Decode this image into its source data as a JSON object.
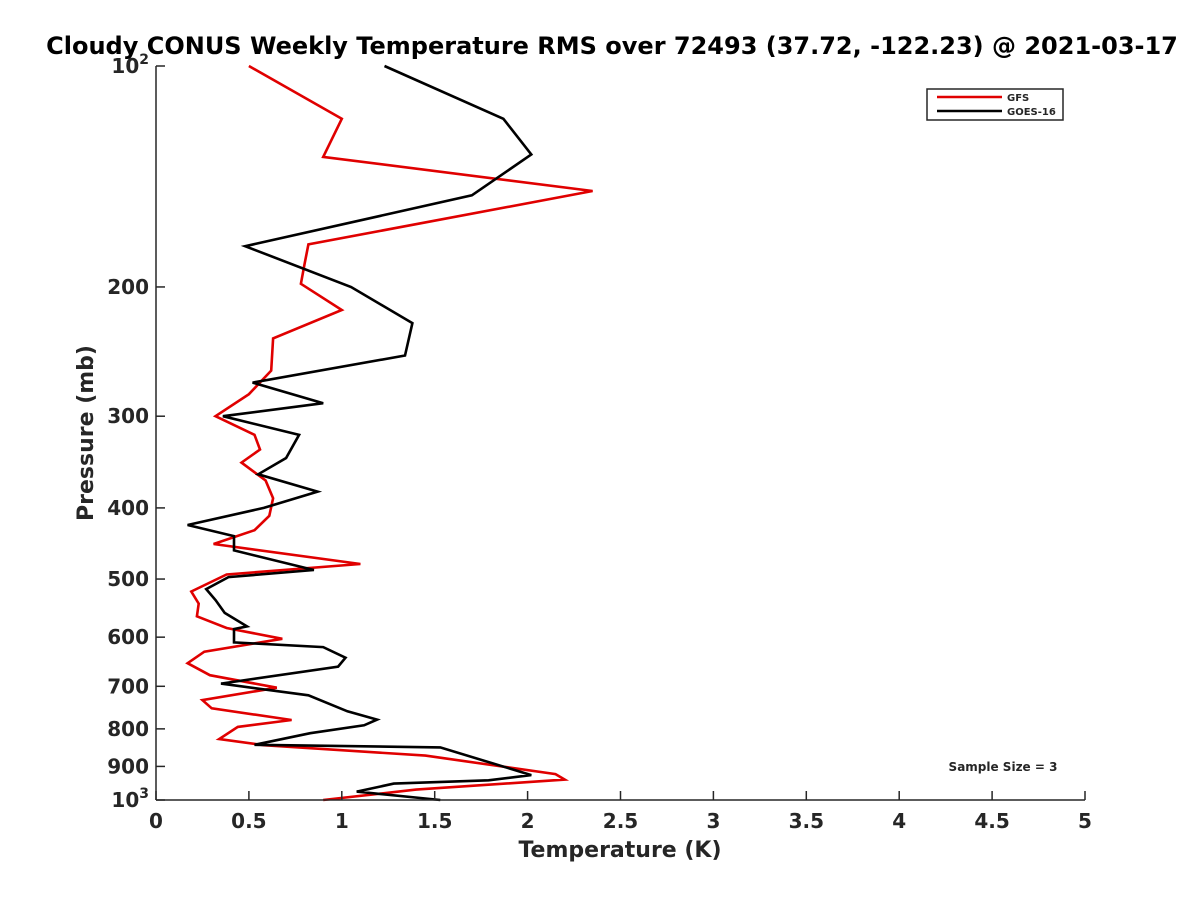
{
  "chart_data": {
    "type": "line",
    "title": "Cloudy CONUS Weekly Temperature RMS over 72493 (37.72, -122.23) @ 2021-03-17",
    "xlabel": "Temperature (K)",
    "ylabel": "Pressure (mb)",
    "xlim": [
      0,
      5
    ],
    "ylim": [
      100,
      1000
    ],
    "y_scale": "log",
    "y_reversed": true,
    "x_ticks": [
      "0",
      "0.5",
      "1",
      "1.5",
      "2",
      "2.5",
      "3",
      "3.5",
      "4",
      "4.5",
      "5"
    ],
    "y_ticks": [
      {
        "value": 100,
        "base": "10",
        "exp": "2"
      },
      {
        "value": 200,
        "label": "200"
      },
      {
        "value": 300,
        "label": "300"
      },
      {
        "value": 400,
        "label": "400"
      },
      {
        "value": 500,
        "label": "500"
      },
      {
        "value": 600,
        "label": "600"
      },
      {
        "value": 700,
        "label": "700"
      },
      {
        "value": 800,
        "label": "800"
      },
      {
        "value": 900,
        "label": "900"
      },
      {
        "value": 1000,
        "base": "10",
        "exp": "3"
      }
    ],
    "grid": false,
    "legend_position": "top-right",
    "annotation": "Sample Size = 3",
    "series": [
      {
        "name": "GFS",
        "color": "#e00000",
        "x": [
          0.5,
          1.0,
          0.9,
          2.35,
          0.82,
          0.8,
          0.78,
          1.0,
          0.63,
          0.62,
          0.5,
          0.32,
          0.53,
          0.56,
          0.46,
          0.59,
          0.63,
          0.61,
          0.53,
          0.31,
          1.1,
          0.38,
          0.19,
          0.23,
          0.22,
          0.38,
          0.68,
          0.26,
          0.17,
          0.29,
          0.65,
          0.25,
          0.3,
          0.73,
          0.44,
          0.34,
          0.58,
          1.45,
          2.15,
          2.2,
          1.4,
          0.9
        ],
        "y": [
          100,
          118,
          133,
          148,
          175,
          186,
          198,
          215,
          235,
          260,
          280,
          300,
          318,
          333,
          347,
          367,
          388,
          410,
          429,
          448,
          477,
          493,
          520,
          540,
          562,
          583,
          603,
          628,
          651,
          676,
          703,
          731,
          750,
          778,
          795,
          826,
          842,
          870,
          922,
          938,
          968,
          1000
        ]
      },
      {
        "name": "GOES-16",
        "color": "#000000",
        "x": [
          1.23,
          1.87,
          2.02,
          1.7,
          0.48,
          1.05,
          1.38,
          1.34,
          0.52,
          0.9,
          0.36,
          0.77,
          0.7,
          0.55,
          0.87,
          0.58,
          0.17,
          0.42,
          0.42,
          0.85,
          0.39,
          0.27,
          0.32,
          0.37,
          0.49,
          0.42,
          0.42,
          0.9,
          1.02,
          0.98,
          0.35,
          0.82,
          1.03,
          1.19,
          1.12,
          0.83,
          0.53,
          1.53,
          2.02,
          1.79,
          1.28,
          1.08,
          1.53
        ],
        "y": [
          100,
          118,
          132,
          150,
          176,
          200,
          224,
          248,
          270,
          288,
          300,
          318,
          342,
          360,
          380,
          400,
          422,
          437,
          457,
          486,
          497,
          516,
          534,
          556,
          580,
          585,
          610,
          619,
          640,
          658,
          694,
          720,
          757,
          777,
          791,
          811,
          841,
          848,
          925,
          940,
          950,
          974,
          1000
        ]
      }
    ]
  }
}
